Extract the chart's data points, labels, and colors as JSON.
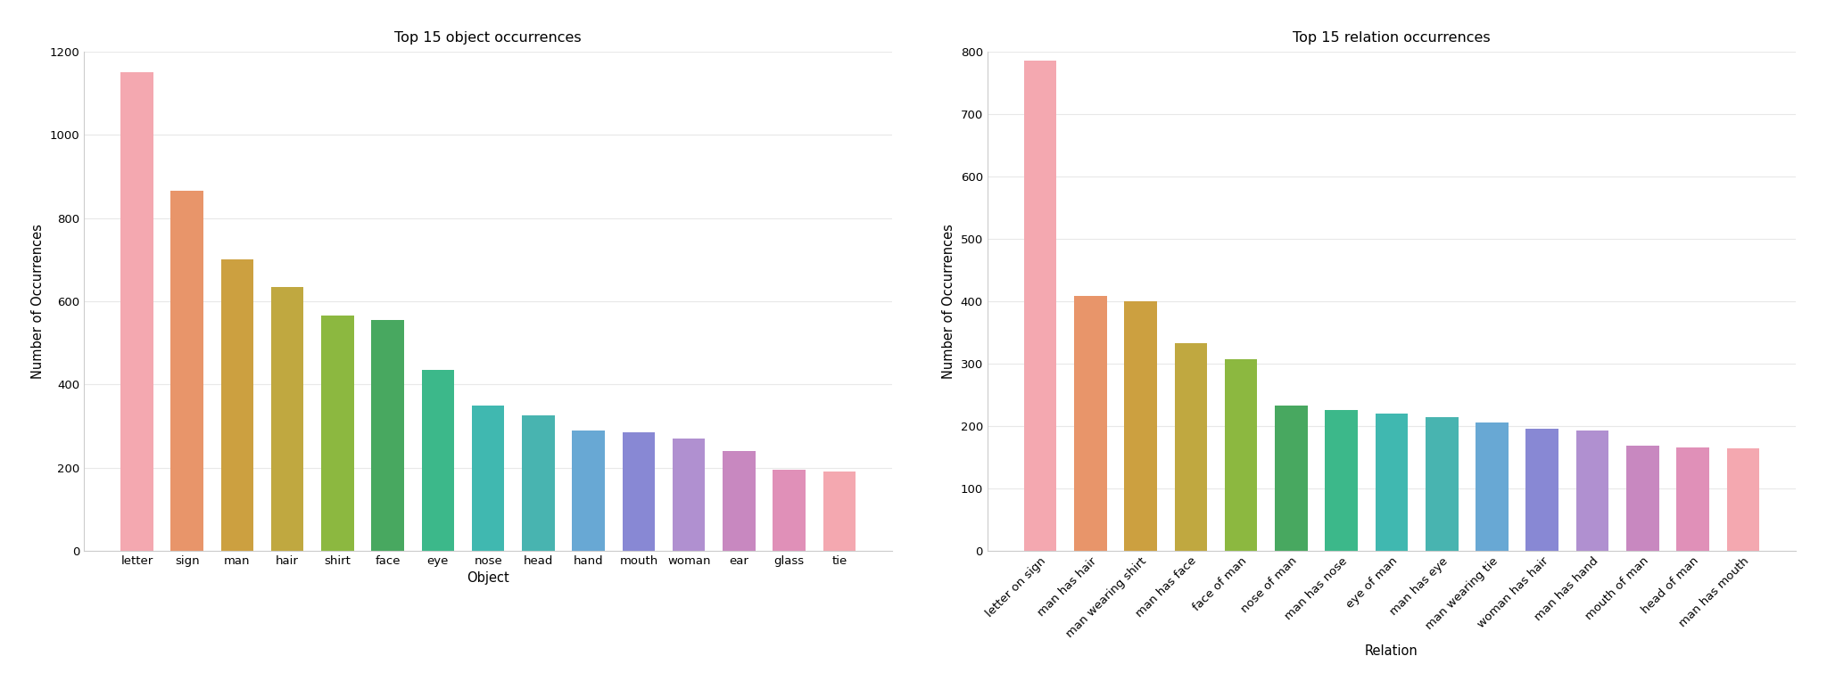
{
  "obj_categories": [
    "letter",
    "sign",
    "man",
    "hair",
    "shirt",
    "face",
    "eye",
    "nose",
    "head",
    "hand",
    "mouth",
    "woman",
    "ear",
    "glass",
    "tie"
  ],
  "obj_values": [
    1150,
    865,
    700,
    635,
    565,
    555,
    435,
    350,
    325,
    290,
    285,
    270,
    240,
    195,
    190
  ],
  "obj_colors": [
    "#F4A8B0",
    "#E8956A",
    "#CCA040",
    "#C0A840",
    "#8CB840",
    "#48A860",
    "#3CB88A",
    "#40B8B0",
    "#48B4B0",
    "#68A8D4",
    "#8888D4",
    "#B090D0",
    "#C888C0",
    "#E090B8",
    "#F4A8B0"
  ],
  "rel_categories": [
    "letter on sign",
    "man has hair",
    "man wearing shirt",
    "man has face",
    "face of man",
    "nose of man",
    "man has nose",
    "eye of man",
    "man has eye",
    "man wearing tie",
    "woman has hair",
    "man has hand",
    "mouth of man",
    "head of man",
    "man has mouth"
  ],
  "rel_values": [
    785,
    408,
    400,
    333,
    307,
    232,
    226,
    220,
    214,
    205,
    195,
    193,
    168,
    166,
    164
  ],
  "rel_colors": [
    "#F4A8B0",
    "#E8956A",
    "#CCA040",
    "#C0A840",
    "#8CB840",
    "#48A860",
    "#3CB88A",
    "#40B8B0",
    "#48B4B0",
    "#68A8D4",
    "#8888D4",
    "#B090D0",
    "#C888C0",
    "#E090B8",
    "#F4A8B0"
  ],
  "obj_title": "Top 15 object occurrences",
  "rel_title": "Top 15 relation occurrences",
  "obj_xlabel": "Object",
  "rel_xlabel": "Relation",
  "ylabel": "Number of Occurrences",
  "obj_ylim": [
    0,
    1200
  ],
  "rel_ylim": [
    0,
    800
  ],
  "obj_yticks": [
    0,
    200,
    400,
    600,
    800,
    1000,
    1200
  ],
  "rel_yticks": [
    0,
    100,
    200,
    300,
    400,
    500,
    600,
    700,
    800
  ],
  "background_color": "#FFFFFF",
  "spine_color": "#CCCCCC",
  "grid_color": "#E8E8E8"
}
